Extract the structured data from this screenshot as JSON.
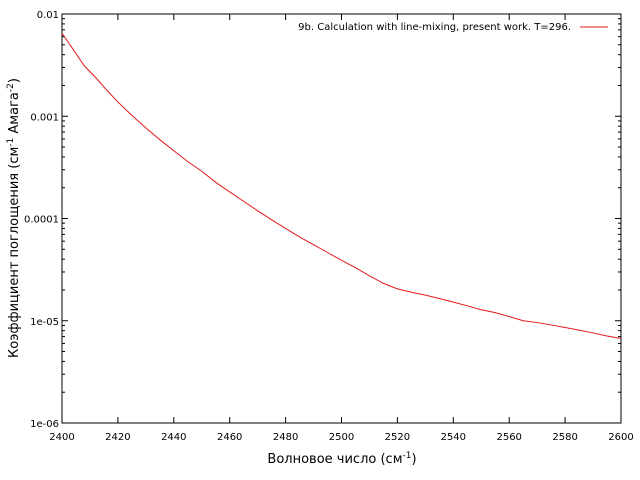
{
  "chart_data": {
    "type": "line",
    "xlabel": "Волновое число (см",
    "xlabel_sup": "-1",
    "xlabel_end": ")",
    "ylabel": "Коэффициент поглощения (см",
    "ylabel_sup1": "-1",
    "ylabel_mid": " Амага",
    "ylabel_sup2": "-2",
    "ylabel_end": ")",
    "xlim": [
      2400,
      2600
    ],
    "ylim": [
      1e-06,
      0.01
    ],
    "y_scale": "log",
    "grid": false,
    "legend_position": "top-right",
    "x_ticks": [
      2400,
      2420,
      2440,
      2460,
      2480,
      2500,
      2520,
      2540,
      2560,
      2580,
      2600
    ],
    "x_tick_labels": [
      "2400",
      "2420",
      "2440",
      "2460",
      "2480",
      "2500",
      "2520",
      "2540",
      "2560",
      "2580",
      "2600"
    ],
    "y_ticks": [
      1e-06,
      1e-05,
      0.0001,
      0.001,
      0.01
    ],
    "y_tick_labels": [
      "1e-06",
      "1e-05",
      "0.0001",
      "0.001",
      "0.01"
    ],
    "series": [
      {
        "name": "9b. Calculation with line-mixing, present work. T=296.",
        "color": "#e31a1c",
        "x": [
          2400,
          2404,
          2408,
          2412,
          2416,
          2420,
          2425,
          2430,
          2435,
          2440,
          2445,
          2450,
          2455,
          2460,
          2465,
          2470,
          2475,
          2480,
          2485,
          2490,
          2495,
          2500,
          2505,
          2510,
          2515,
          2520,
          2525,
          2530,
          2535,
          2540,
          2545,
          2550,
          2555,
          2560,
          2565,
          2570,
          2575,
          2580,
          2585,
          2590,
          2595,
          2600
        ],
        "y": [
          0.0065,
          0.0045,
          0.0031,
          0.0024,
          0.0018,
          0.00138,
          0.00102,
          0.00077,
          0.00059,
          0.00046,
          0.00036,
          0.00029,
          0.000226,
          0.000182,
          0.000147,
          0.000119,
          9.7e-05,
          8e-05,
          6.6e-05,
          5.55e-05,
          4.65e-05,
          3.9e-05,
          3.3e-05,
          2.75e-05,
          2.32e-05,
          2.05e-05,
          1.9e-05,
          1.78e-05,
          1.65e-05,
          1.52e-05,
          1.4e-05,
          1.28e-05,
          1.2e-05,
          1.1e-05,
          1e-05,
          9.6e-06,
          9.1e-06,
          8.6e-06,
          8.1e-06,
          7.6e-06,
          7.1e-06,
          6.7e-06
        ]
      }
    ]
  }
}
